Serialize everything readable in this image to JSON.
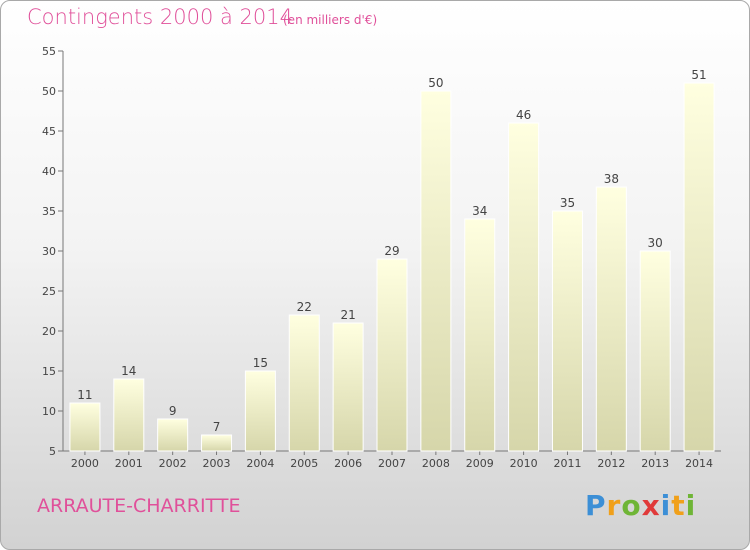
{
  "header": {
    "title": "Contingents 2000 à 2014",
    "subtitle": "(en milliers d'€)"
  },
  "footer": {
    "commune": "ARRAUTE-CHARRITTE",
    "logo_letters": [
      {
        "char": "P",
        "color": "#3c8fd6"
      },
      {
        "char": "r",
        "color": "#f0a01a"
      },
      {
        "char": "o",
        "color": "#6fb536"
      },
      {
        "char": "x",
        "color": "#e03a3a"
      },
      {
        "char": "i",
        "color": "#3c8fd6"
      },
      {
        "char": "t",
        "color": "#f0a01a"
      },
      {
        "char": "i",
        "color": "#6fb536"
      }
    ]
  },
  "chart_data": {
    "type": "bar",
    "title": "Contingents 2000 à 2014",
    "subtitle": "(en milliers d'€)",
    "categories": [
      "2000",
      "2001",
      "2002",
      "2003",
      "2004",
      "2005",
      "2006",
      "2007",
      "2008",
      "2009",
      "2010",
      "2011",
      "2012",
      "2013",
      "2014"
    ],
    "values": [
      11,
      14,
      9,
      7,
      15,
      22,
      21,
      29,
      50,
      34,
      46,
      35,
      38,
      30,
      51
    ],
    "ylim": [
      5,
      55
    ],
    "yticks": [
      5,
      10,
      15,
      20,
      25,
      30,
      35,
      40,
      45,
      50,
      55
    ],
    "grid": false,
    "bar_color_top": "#ffffe0",
    "bar_color_bottom": "#d6d6aa"
  }
}
